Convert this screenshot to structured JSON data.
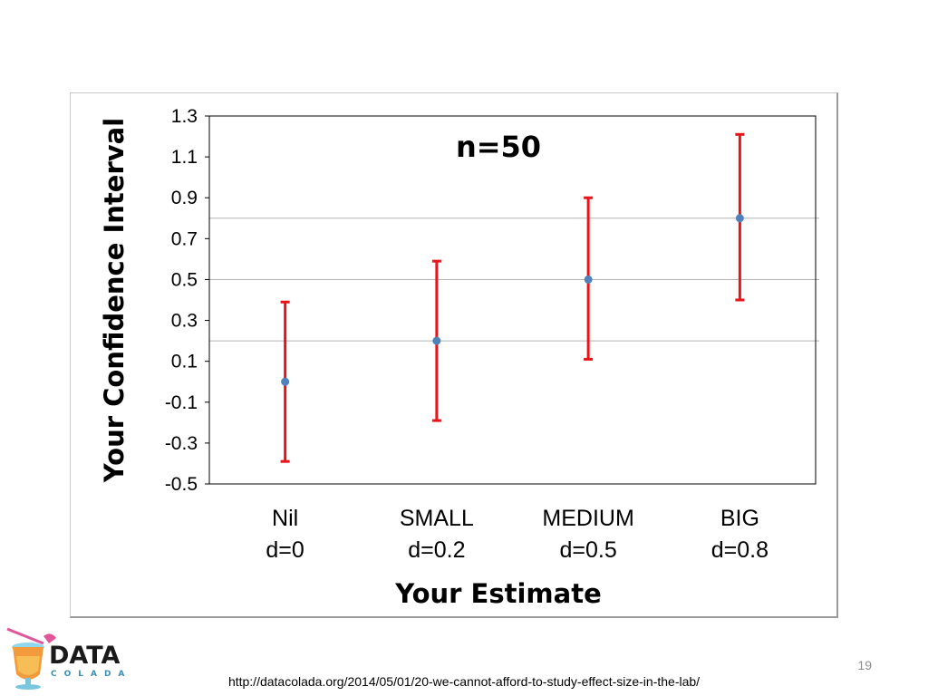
{
  "chart_data": {
    "type": "scatter",
    "title": "",
    "annotation": "n=50",
    "xlabel": "Your Estimate",
    "ylabel": "Your Confidence Interval",
    "ylim": [
      -0.5,
      1.3
    ],
    "yticks": [
      "1.3",
      "1.1",
      "0.9",
      "0.7",
      "0.5",
      "0.3",
      "0.1",
      "-0.1",
      "-0.3",
      "-0.5"
    ],
    "ytick_values": [
      1.3,
      1.1,
      0.9,
      0.7,
      0.5,
      0.3,
      0.1,
      -0.1,
      -0.3,
      -0.5
    ],
    "categories": [
      {
        "name": "Nil",
        "sub": "d=0"
      },
      {
        "name": "SMALL",
        "sub": "d=0.2"
      },
      {
        "name": "MEDIUM",
        "sub": "d=0.5"
      },
      {
        "name": "BIG",
        "sub": "d=0.8"
      }
    ],
    "points": [
      {
        "estimate": 0.0,
        "ci_low": -0.39,
        "ci_high": 0.39
      },
      {
        "estimate": 0.2,
        "ci_low": -0.19,
        "ci_high": 0.59
      },
      {
        "estimate": 0.5,
        "ci_low": 0.11,
        "ci_high": 0.9
      },
      {
        "estimate": 0.8,
        "ci_low": 0.4,
        "ci_high": 1.21
      }
    ],
    "reference_lines": [
      0.8,
      0.5,
      0.2
    ],
    "grid": false,
    "legend": "none",
    "colors": {
      "point": "#4f81bd",
      "error_bar": "#e8141a",
      "reference_line": "#b4b4b4"
    }
  },
  "logo": {
    "line1": "DATA",
    "line2": "COLADA"
  },
  "footer": {
    "page_number": "19",
    "url": "http://datacolada.org/2014/05/01/20-we-cannot-afford-to-study-effect-size-in-the-lab/"
  }
}
